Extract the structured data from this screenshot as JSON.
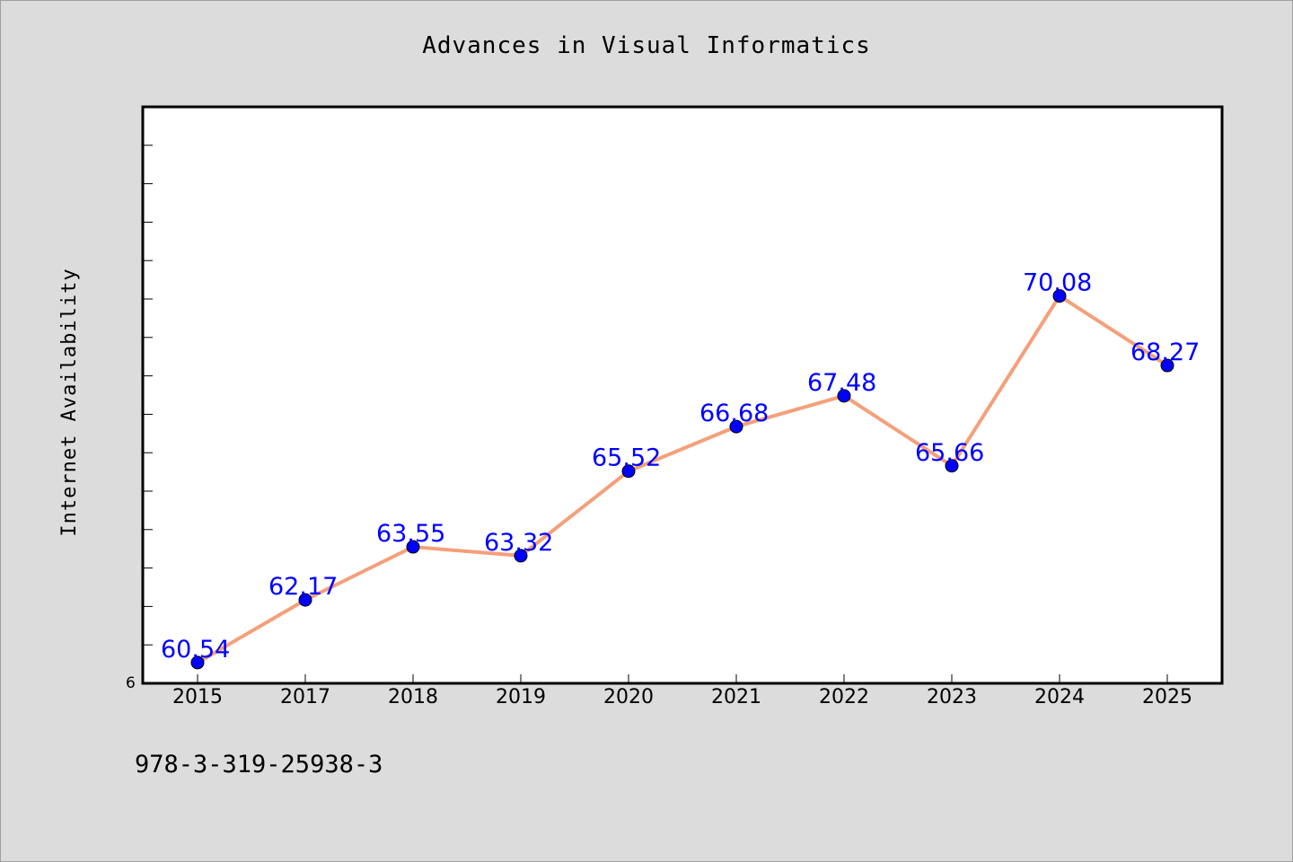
{
  "chart_data": {
    "type": "line",
    "title": "Advances in Visual Informatics",
    "xlabel": "",
    "ylabel": "Internet Availability",
    "categories": [
      "2015",
      "2017",
      "2018",
      "2019",
      "2020",
      "2021",
      "2022",
      "2023",
      "2024",
      "2025"
    ],
    "series": [
      {
        "values": [
          60.54,
          62.17,
          63.55,
          63.32,
          65.52,
          66.68,
          67.48,
          65.66,
          70.08,
          68.27
        ]
      }
    ],
    "data_labels": [
      "60.54",
      "62.17",
      "63.55",
      "63.32",
      "65.52",
      "66.68",
      "67.48",
      "65.66",
      "70.08",
      "68.27"
    ],
    "y_tick_label": "6",
    "ylim": [
      60,
      75
    ],
    "grid": false,
    "legend": "none",
    "colors": {
      "line": "#f4a07a",
      "marker": "#0000ff",
      "data_label": "#0000ff",
      "background": "#dcdcdc",
      "plot_background": "#ffffff"
    }
  },
  "footer": {
    "code": "978-3-319-25938-3"
  }
}
